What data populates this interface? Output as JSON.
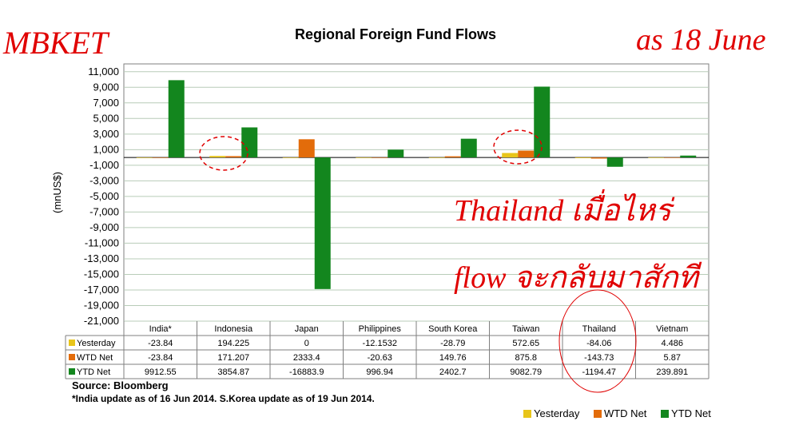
{
  "header": {
    "brand": "MBKET",
    "as_of": "as 18 June",
    "title": "Regional Foreign Fund Flows"
  },
  "annotations": {
    "note_line1": "Thailand เมื่อไหร่",
    "note_line2": "flow จะกลับมาสักที"
  },
  "footer": {
    "source": "Source: Bloomberg",
    "footnote": "*India update as of 16 Jun 2014. S.Korea update as of 19 Jun 2014."
  },
  "colors": {
    "yesterday": "#e8c51a",
    "wtd": "#e36c0a",
    "ytd": "#13861e",
    "annotation": "#e00000",
    "grid": "#b8ccb8"
  },
  "chart_data": {
    "type": "bar",
    "title": "Regional Foreign Fund Flows",
    "ylabel": "(mnUS$)",
    "xlabel": "",
    "categories": [
      "India*",
      "Indonesia",
      "Japan",
      "Philippines",
      "South Korea",
      "Taiwan",
      "Thailand",
      "Vietnam"
    ],
    "ylim": [
      -21000,
      12000
    ],
    "yticks": [
      11000,
      9000,
      7000,
      5000,
      3000,
      1000,
      -1000,
      -3000,
      -5000,
      -7000,
      -9000,
      -11000,
      -13000,
      -15000,
      -17000,
      -19000,
      -21000
    ],
    "ytick_labels": [
      "11,000",
      "9,000",
      "7,000",
      "5,000",
      "3,000",
      "1,000",
      "-1,000",
      "-3,000",
      "-5,000",
      "-7,000",
      "-9,000",
      "-11,000",
      "-13,000",
      "-15,000",
      "-17,000",
      "-19,000",
      "-21,000"
    ],
    "grid": true,
    "legend_position": "bottom-right",
    "series": [
      {
        "name": "Yesterday",
        "values": [
          -23.84,
          194.225,
          0,
          -12.1532,
          -28.79,
          572.65,
          -84.06,
          4.486
        ],
        "labels": [
          "-23.84",
          "194.225",
          "0",
          "-12.1532",
          "-28.79",
          "572.65",
          "-84.06",
          "4.486"
        ]
      },
      {
        "name": "WTD Net",
        "values": [
          -23.84,
          171.207,
          2333.4,
          -20.63,
          149.76,
          875.8,
          -143.73,
          5.87
        ],
        "labels": [
          "-23.84",
          "171.207",
          "2333.4",
          "-20.63",
          "149.76",
          "875.8",
          "-143.73",
          "5.87"
        ]
      },
      {
        "name": "YTD Net",
        "values": [
          9912.55,
          3854.87,
          -16883.9,
          996.94,
          2402.7,
          9082.79,
          -1194.47,
          239.891
        ],
        "labels": [
          "9912.55",
          "3854.87",
          "-16883.9",
          "996.94",
          "2402.7",
          "9082.79",
          "-1194.47",
          "239.891"
        ]
      }
    ]
  }
}
